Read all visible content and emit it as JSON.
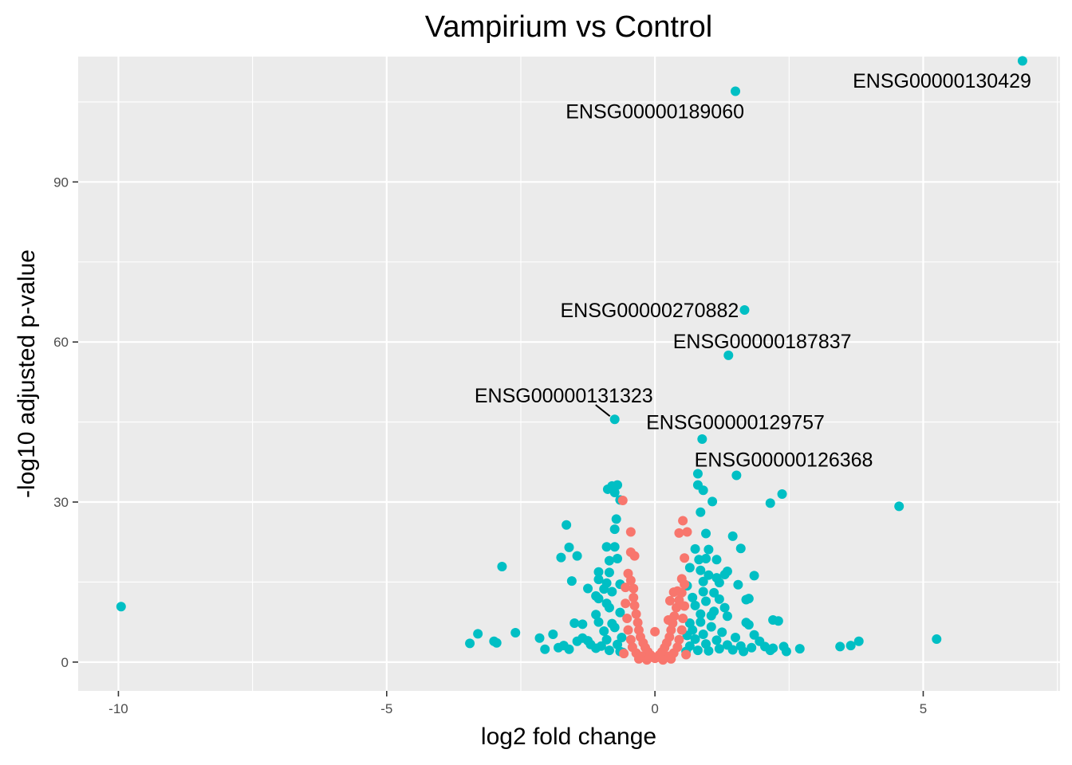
{
  "chart_data": {
    "type": "scatter",
    "title": "Vampirium vs Control",
    "xlabel": "log2 fold change",
    "ylabel": "-log10 adjusted p-value",
    "xlim": [
      -10.75,
      7.55
    ],
    "ylim": [
      -5.4,
      113.5
    ],
    "x_ticks": [
      -10,
      -5,
      0,
      5
    ],
    "x_tick_labels": [
      "-10",
      "-5",
      "0",
      "5"
    ],
    "y_ticks": [
      0,
      30,
      60,
      90
    ],
    "y_tick_labels": [
      "0",
      "30",
      "60",
      "90"
    ],
    "grid": true,
    "colors": {
      "panel": "#ebebeb",
      "grid": "#ffffff",
      "significant": "#00bfc4",
      "not_significant": "#f8766d",
      "tick": "#333333"
    },
    "series": [
      {
        "color": "#00bfc4",
        "points": [
          [
            6.85,
            112.7
          ],
          [
            1.5,
            107.0
          ],
          [
            1.67,
            66.0
          ],
          [
            1.37,
            57.5
          ],
          [
            -0.75,
            45.5
          ],
          [
            0.88,
            41.8
          ],
          [
            1.52,
            35.0
          ],
          [
            0.8,
            35.3
          ],
          [
            0.8,
            33.2
          ],
          [
            0.9,
            32.2
          ],
          [
            2.37,
            31.5
          ],
          [
            1.07,
            30.1
          ],
          [
            2.15,
            29.8
          ],
          [
            4.55,
            29.2
          ],
          [
            0.85,
            28.1
          ],
          [
            -0.8,
            33.0
          ],
          [
            -0.7,
            33.2
          ],
          [
            -0.88,
            32.4
          ],
          [
            -0.75,
            31.8
          ],
          [
            -0.65,
            30.4
          ],
          [
            -0.72,
            26.8
          ],
          [
            -1.65,
            25.7
          ],
          [
            -0.75,
            24.9
          ],
          [
            0.95,
            24.1
          ],
          [
            1.45,
            23.6
          ],
          [
            1.6,
            21.3
          ],
          [
            -1.6,
            21.5
          ],
          [
            -0.9,
            21.6
          ],
          [
            -0.75,
            21.6
          ],
          [
            0.75,
            21.2
          ],
          [
            1.0,
            21.1
          ],
          [
            -1.75,
            19.6
          ],
          [
            -1.45,
            19.9
          ],
          [
            -0.85,
            19.0
          ],
          [
            -0.7,
            19.4
          ],
          [
            0.82,
            19.2
          ],
          [
            0.95,
            19.4
          ],
          [
            1.15,
            19.2
          ],
          [
            -2.85,
            17.9
          ],
          [
            -1.05,
            16.9
          ],
          [
            -0.85,
            16.8
          ],
          [
            0.65,
            17.7
          ],
          [
            0.85,
            17.2
          ],
          [
            1.0,
            16.3
          ],
          [
            1.35,
            17.0
          ],
          [
            1.3,
            16.4
          ],
          [
            1.85,
            16.2
          ],
          [
            -1.05,
            15.5
          ],
          [
            -1.55,
            15.2
          ],
          [
            -0.9,
            14.8
          ],
          [
            -0.65,
            14.6
          ],
          [
            0.9,
            15.1
          ],
          [
            1.15,
            15.8
          ],
          [
            1.2,
            14.9
          ],
          [
            0.6,
            14.3
          ],
          [
            1.55,
            14.5
          ],
          [
            -0.95,
            13.7
          ],
          [
            -1.25,
            13.8
          ],
          [
            -0.8,
            13.2
          ],
          [
            0.9,
            13.2
          ],
          [
            1.1,
            13.0
          ],
          [
            -1.1,
            12.4
          ],
          [
            -1.05,
            11.9
          ],
          [
            0.7,
            12.1
          ],
          [
            0.95,
            11.4
          ],
          [
            1.2,
            11.8
          ],
          [
            1.7,
            11.7
          ],
          [
            1.75,
            11.9
          ],
          [
            -0.9,
            11.0
          ],
          [
            -0.85,
            10.2
          ],
          [
            0.75,
            10.6
          ],
          [
            1.3,
            10.2
          ],
          [
            1.1,
            9.5
          ],
          [
            -1.1,
            8.9
          ],
          [
            -0.65,
            9.3
          ],
          [
            0.85,
            9.0
          ],
          [
            1.05,
            8.7
          ],
          [
            1.35,
            8.6
          ],
          [
            2.2,
            7.9
          ],
          [
            2.3,
            7.7
          ],
          [
            -1.5,
            7.3
          ],
          [
            -1.35,
            7.1
          ],
          [
            -1.05,
            7.5
          ],
          [
            -0.8,
            7.2
          ],
          [
            0.65,
            7.3
          ],
          [
            1.75,
            7.0
          ],
          [
            1.7,
            7.4
          ],
          [
            -9.95,
            10.4
          ],
          [
            -3.45,
            3.5
          ],
          [
            -3.3,
            5.3
          ],
          [
            -3.0,
            3.9
          ],
          [
            -2.95,
            3.6
          ],
          [
            -2.6,
            5.5
          ],
          [
            -2.15,
            4.5
          ],
          [
            -2.05,
            2.4
          ],
          [
            -1.9,
            5.2
          ],
          [
            -1.8,
            2.7
          ],
          [
            -1.7,
            3.1
          ],
          [
            -1.6,
            2.4
          ],
          [
            -1.45,
            3.9
          ],
          [
            -1.35,
            4.5
          ],
          [
            -1.25,
            4.0
          ],
          [
            -1.2,
            3.3
          ],
          [
            -1.1,
            2.6
          ],
          [
            -1.0,
            3.0
          ],
          [
            -0.95,
            5.8
          ],
          [
            -0.9,
            4.2
          ],
          [
            -0.85,
            2.2
          ],
          [
            -0.75,
            6.5
          ],
          [
            -0.7,
            3.3
          ],
          [
            -0.65,
            2.0
          ],
          [
            -0.62,
            4.6
          ],
          [
            -0.6,
            1.8
          ],
          [
            0.58,
            2.0
          ],
          [
            0.6,
            5.0
          ],
          [
            0.65,
            3.0
          ],
          [
            0.7,
            6.0
          ],
          [
            0.75,
            4.3
          ],
          [
            0.8,
            2.2
          ],
          [
            0.85,
            7.5
          ],
          [
            0.9,
            5.2
          ],
          [
            0.95,
            3.4
          ],
          [
            1.0,
            2.1
          ],
          [
            1.05,
            6.6
          ],
          [
            1.15,
            4.1
          ],
          [
            1.2,
            2.5
          ],
          [
            1.25,
            5.6
          ],
          [
            1.35,
            3.2
          ],
          [
            1.45,
            2.3
          ],
          [
            1.5,
            4.6
          ],
          [
            1.6,
            3.0
          ],
          [
            1.65,
            2.0
          ],
          [
            1.8,
            2.7
          ],
          [
            1.85,
            5.1
          ],
          [
            1.95,
            3.9
          ],
          [
            2.05,
            2.9
          ],
          [
            2.15,
            2.2
          ],
          [
            2.2,
            2.6
          ],
          [
            2.4,
            2.9
          ],
          [
            2.45,
            2.0
          ],
          [
            2.7,
            2.5
          ],
          [
            3.45,
            2.9
          ],
          [
            3.65,
            3.1
          ],
          [
            3.8,
            3.9
          ],
          [
            5.25,
            4.3
          ]
        ]
      },
      {
        "color": "#f8766d",
        "points": [
          [
            -0.6,
            30.3
          ],
          [
            -0.45,
            24.4
          ],
          [
            -0.45,
            20.6
          ],
          [
            -0.38,
            19.9
          ],
          [
            0.52,
            26.5
          ],
          [
            0.45,
            24.2
          ],
          [
            0.6,
            24.4
          ],
          [
            0.55,
            19.5
          ],
          [
            0.5,
            15.6
          ],
          [
            0.55,
            14.6
          ],
          [
            0.35,
            13.1
          ],
          [
            0.42,
            13.3
          ],
          [
            0.28,
            11.5
          ],
          [
            0.25,
            7.9
          ],
          [
            0.0,
            5.7
          ],
          [
            -0.5,
            16.6
          ],
          [
            -0.45,
            15.3
          ],
          [
            -0.4,
            13.8
          ],
          [
            -0.4,
            12.1
          ],
          [
            -0.38,
            10.6
          ],
          [
            -0.35,
            9.0
          ],
          [
            -0.32,
            7.4
          ],
          [
            -0.3,
            6.0
          ],
          [
            -0.27,
            4.7
          ],
          [
            -0.22,
            3.6
          ],
          [
            -0.18,
            2.7
          ],
          [
            -0.13,
            1.9
          ],
          [
            -0.08,
            1.3
          ],
          [
            -0.04,
            0.9
          ],
          [
            0.0,
            0.7
          ],
          [
            0.04,
            0.9
          ],
          [
            0.08,
            1.3
          ],
          [
            0.13,
            1.9
          ],
          [
            0.18,
            2.7
          ],
          [
            0.22,
            3.6
          ],
          [
            0.27,
            4.7
          ],
          [
            0.3,
            6.0
          ],
          [
            0.33,
            7.3
          ],
          [
            0.36,
            8.6
          ],
          [
            0.4,
            10.2
          ],
          [
            0.45,
            11.6
          ],
          [
            0.5,
            13.0
          ],
          [
            -0.55,
            14.0
          ],
          [
            -0.55,
            11.0
          ],
          [
            -0.52,
            8.2
          ],
          [
            -0.5,
            6.0
          ],
          [
            -0.45,
            4.2
          ],
          [
            -0.42,
            2.8
          ],
          [
            -0.35,
            1.7
          ],
          [
            -0.25,
            1.1
          ],
          [
            0.25,
            1.1
          ],
          [
            0.35,
            1.7
          ],
          [
            0.42,
            2.8
          ],
          [
            0.45,
            4.2
          ],
          [
            0.5,
            6.0
          ],
          [
            0.52,
            8.2
          ],
          [
            0.55,
            10.5
          ],
          [
            -0.58,
            1.6
          ],
          [
            0.58,
            1.4
          ],
          [
            -0.3,
            0.6
          ],
          [
            0.3,
            0.6
          ],
          [
            -0.15,
            0.4
          ],
          [
            0.15,
            0.4
          ]
        ]
      }
    ],
    "annotations": [
      {
        "label": "ENSG00000130429",
        "x": 6.85,
        "y": 112.7,
        "lx": 5.35,
        "ly": 109.0,
        "leader": false
      },
      {
        "label": "ENSG00000189060",
        "x": 1.5,
        "y": 107.0,
        "lx": 0.0,
        "ly": 103.3,
        "leader": false
      },
      {
        "label": "ENSG00000270882",
        "x": 1.67,
        "y": 66.0,
        "lx": -0.1,
        "ly": 66.0,
        "leader": false
      },
      {
        "label": "ENSG00000187837",
        "x": 1.37,
        "y": 57.5,
        "lx": 2.0,
        "ly": 60.2,
        "leader": false
      },
      {
        "label": "ENSG00000131323",
        "x": -0.75,
        "y": 45.5,
        "lx": -1.7,
        "ly": 50.0,
        "leader": true
      },
      {
        "label": "ENSG00000129757",
        "x": 0.88,
        "y": 41.8,
        "lx": 1.5,
        "ly": 45.0,
        "leader": false
      },
      {
        "label": "ENSG00000126368",
        "x": 1.52,
        "y": 35.0,
        "lx": 2.4,
        "ly": 38.0,
        "leader": false
      }
    ]
  }
}
